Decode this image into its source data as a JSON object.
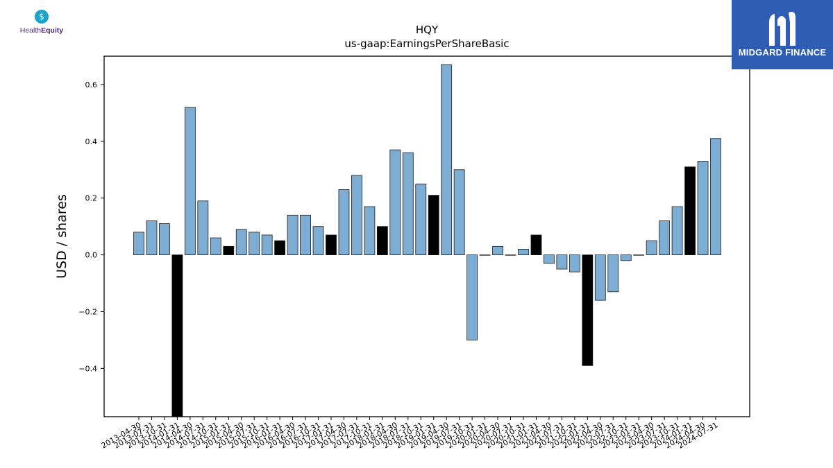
{
  "logos": {
    "left": {
      "text_plain": "Health",
      "text_bold": "Equity",
      "icon": "dollar-sign-icon",
      "color": "#4b2a7a",
      "icon_color": "#1aa3c8"
    },
    "right": {
      "text": "MIDGARD FINANCE",
      "icon": "midgard-mark-icon",
      "background": "#2f5db3"
    }
  },
  "chart_data": {
    "type": "bar",
    "title": "HQY",
    "subtitle": "us-gaap:EarningsPerShareBasic",
    "xlabel": "",
    "ylabel": "USD / shares",
    "ylim": [
      -0.57,
      0.7
    ],
    "yticks": [
      -0.4,
      -0.2,
      0.0,
      0.2,
      0.4,
      0.6
    ],
    "ytick_labels": [
      "−0.4",
      "−0.2",
      "0.0",
      "0.2",
      "0.4",
      "0.6"
    ],
    "grid": false,
    "colors": {
      "default": "#7eadd4",
      "highlight": "#000000",
      "edge": "#1a1a1a"
    },
    "categories": [
      "2013-04-30",
      "2013-07-31",
      "2013-10-31",
      "2014-01-31",
      "2014-04-30",
      "2014-07-31",
      "2014-10-31",
      "2015-01-31",
      "2015-04-30",
      "2015-07-31",
      "2015-10-31",
      "2016-01-31",
      "2016-04-30",
      "2016-07-31",
      "2016-10-31",
      "2017-01-31",
      "2017-04-30",
      "2017-07-31",
      "2017-10-31",
      "2018-01-31",
      "2018-04-30",
      "2018-07-31",
      "2018-10-31",
      "2019-01-31",
      "2019-04-30",
      "2019-07-31",
      "2019-10-31",
      "2020-01-31",
      "2020-04-30",
      "2020-07-31",
      "2020-10-31",
      "2021-01-31",
      "2021-04-30",
      "2021-07-31",
      "2021-10-31",
      "2022-01-31",
      "2022-04-30",
      "2022-07-31",
      "2022-10-31",
      "2023-01-31",
      "2023-04-30",
      "2023-07-31",
      "2023-10-31",
      "2024-01-31",
      "2024-04-30",
      "2024-07-31"
    ],
    "values": [
      0.08,
      0.12,
      0.11,
      -0.57,
      0.52,
      0.19,
      0.06,
      0.03,
      0.09,
      0.08,
      0.07,
      0.05,
      0.14,
      0.14,
      0.1,
      0.07,
      0.23,
      0.28,
      0.17,
      0.1,
      0.37,
      0.36,
      0.25,
      0.21,
      0.67,
      0.3,
      -0.3,
      0.0,
      0.03,
      0.0,
      0.02,
      0.07,
      -0.03,
      -0.05,
      -0.06,
      -0.39,
      -0.16,
      -0.13,
      -0.02,
      0.0,
      0.05,
      0.12,
      0.17,
      0.31,
      0.33,
      0.41
    ],
    "highlight": [
      false,
      false,
      false,
      true,
      false,
      false,
      false,
      true,
      false,
      false,
      false,
      true,
      false,
      false,
      false,
      true,
      false,
      false,
      false,
      true,
      false,
      false,
      false,
      true,
      false,
      false,
      false,
      false,
      false,
      false,
      false,
      true,
      false,
      false,
      false,
      true,
      false,
      false,
      false,
      false,
      false,
      false,
      false,
      true,
      false,
      false
    ]
  }
}
